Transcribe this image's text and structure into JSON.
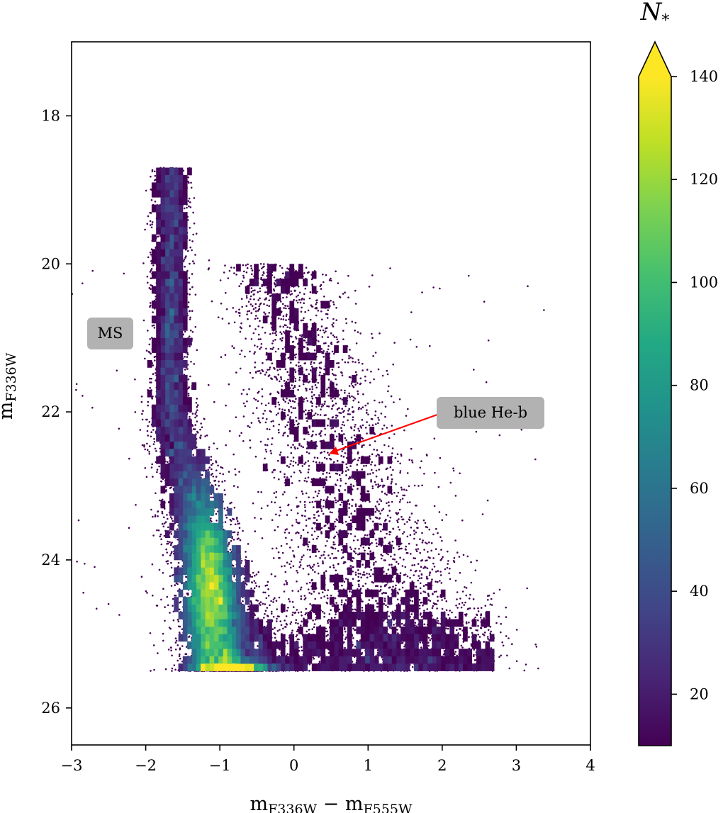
{
  "chart_data": {
    "type": "scatter",
    "subtype": "hess-diagram",
    "title": "",
    "xlabel": {
      "base": "m",
      "sub1": "F336W",
      "sep": " − ",
      "base2": "m",
      "sub2": "F555W"
    },
    "ylabel": {
      "base": "m",
      "sub": "F336W"
    },
    "xlim": [
      -3,
      4
    ],
    "ylim": [
      26.5,
      17.0
    ],
    "y_inverted": true,
    "xticks": [
      -3,
      -2,
      -1,
      0,
      1,
      2,
      3,
      4
    ],
    "xtick_labels": [
      "−3",
      "−2",
      "−1",
      "0",
      "1",
      "2",
      "3",
      "4"
    ],
    "yticks": [
      18,
      20,
      22,
      24,
      26
    ],
    "ytick_labels": [
      "18",
      "20",
      "22",
      "24",
      "26"
    ],
    "grid": false,
    "colorbar": {
      "label_base": "N",
      "label_sub": "*",
      "min": 10,
      "max": 140,
      "extend": "max",
      "colormap": "viridis",
      "ticks": [
        20,
        40,
        60,
        80,
        100,
        120,
        140
      ],
      "tick_labels": [
        "20",
        "40",
        "60",
        "80",
        "100",
        "120",
        "140"
      ]
    },
    "sequences": [
      {
        "name": "MS",
        "ridge": [
          [
            -1.75,
            19.0
          ],
          [
            -1.68,
            21.0
          ],
          [
            -1.5,
            22.5
          ],
          [
            -1.25,
            24.0
          ],
          [
            -1.05,
            24.8
          ],
          [
            -0.8,
            25.4
          ]
        ]
      },
      {
        "name": "blue He-b",
        "ridge": [
          [
            0.0,
            20.0
          ],
          [
            0.3,
            21.5
          ],
          [
            0.5,
            22.5
          ],
          [
            0.9,
            23.8
          ],
          [
            1.3,
            25.0
          ]
        ]
      }
    ],
    "density_peak": {
      "x": -1.15,
      "y": 24.4,
      "count": 140
    },
    "faint_limit": 25.5,
    "annotations": [
      {
        "text": "MS",
        "x": -2.5,
        "y": 21.0
      },
      {
        "text": "blue He-b",
        "x": 2.0,
        "y": 22.0,
        "arrow_to": [
          0.45,
          22.55
        ],
        "arrow_color": "#ff0000"
      }
    ],
    "colors": {
      "low": "#440154",
      "high": "#fde725",
      "annotation_box": "#b2b2b2"
    }
  }
}
